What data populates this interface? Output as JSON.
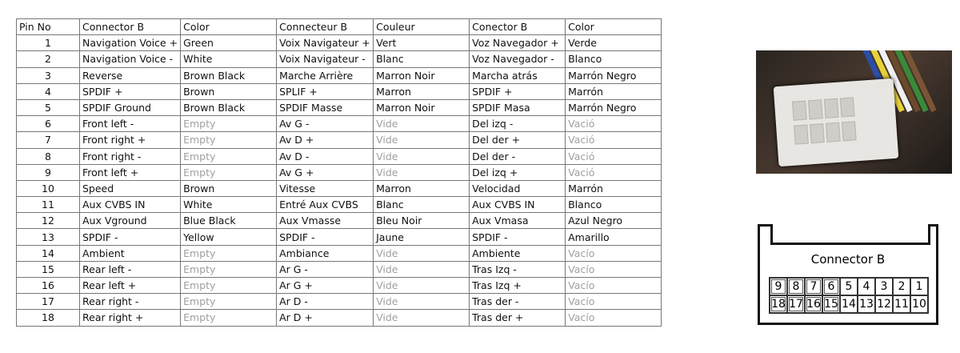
{
  "table": {
    "headers": [
      "Pin No",
      "Connector B",
      "Color",
      "Connecteur B",
      "Couleur",
      "Conector B",
      "Color"
    ],
    "rows": [
      [
        "1",
        "Navigation Voice +",
        "Green",
        "Voix Navigateur +",
        "Vert",
        "Voz Navegador +",
        "Verde"
      ],
      [
        "2",
        "Navigation Voice -",
        "White",
        "Voix Navigateur -",
        "Blanc",
        "Voz Navegador -",
        "Blanco"
      ],
      [
        "3",
        "Reverse",
        "Brown Black",
        "Marche Arrière",
        "Marron Noir",
        "Marcha atrás",
        "Marrón Negro"
      ],
      [
        "4",
        "SPDIF +",
        "Brown",
        "SPLIF +",
        "Marron",
        "SPDIF +",
        "Marrón"
      ],
      [
        "5",
        "SPDIF Ground",
        "Brown Black",
        "SPDIF Masse",
        "Marron Noir",
        "SPDIF Masa",
        "Marrón Negro"
      ],
      [
        "6",
        "Front left -",
        "Empty",
        "Av G -",
        "Vide",
        "Del izq -",
        "Vació"
      ],
      [
        "7",
        "Front right +",
        "Empty",
        "Av D +",
        "Vide",
        "Del der +",
        "Vació"
      ],
      [
        "8",
        "Front right -",
        "Empty",
        "Av D -",
        "Vide",
        "Del der -",
        "Vació"
      ],
      [
        "9",
        "Front left +",
        "Empty",
        "Av G +",
        "Vide",
        "Del izq +",
        "Vació"
      ],
      [
        "10",
        "Speed",
        "Brown",
        "Vitesse",
        "Marron",
        "Velocidad",
        "Marrón"
      ],
      [
        "11",
        "Aux CVBS IN",
        "White",
        "Entré Aux CVBS",
        "Blanc",
        "Aux CVBS IN",
        "Blanco"
      ],
      [
        "12",
        "Aux Vground",
        "Blue Black",
        "Aux Vmasse",
        "Bleu Noir",
        "Aux Vmasa",
        "Azul Negro"
      ],
      [
        "13",
        "SPDIF -",
        "Yellow",
        "SPDIF -",
        "Jaune",
        "SPDIF -",
        "Amarillo"
      ],
      [
        "14",
        "Ambient",
        "Empty",
        "Ambiance",
        "Vide",
        "Ambiente",
        "Vacío"
      ],
      [
        "15",
        "Rear left -",
        "Empty",
        "Ar G -",
        "Vide",
        "Tras Izq -",
        "Vacío"
      ],
      [
        "16",
        "Rear left +",
        "Empty",
        "Ar G +",
        "Vide",
        "Tras Izq +",
        "Vacío"
      ],
      [
        "17",
        "Rear right -",
        "Empty",
        "Ar D -",
        "Vide",
        "Tras der -",
        "Vacío"
      ],
      [
        "18",
        "Rear right +",
        "Empty",
        "Ar D +",
        "Vide",
        "Tras der +",
        "Vacío"
      ]
    ],
    "empty_values": [
      "Empty",
      "Vide",
      "Vació",
      "Vacío"
    ]
  },
  "diagram": {
    "title": "Connector B",
    "top_row": [
      "9",
      "8",
      "7",
      "6",
      "5",
      "4",
      "3",
      "2",
      "1"
    ],
    "bottom_row": [
      "18",
      "17",
      "16",
      "15",
      "14",
      "13",
      "12",
      "11",
      "10"
    ]
  },
  "colors": {
    "empty_text": "#a0a0a0",
    "grid": "#777777"
  }
}
